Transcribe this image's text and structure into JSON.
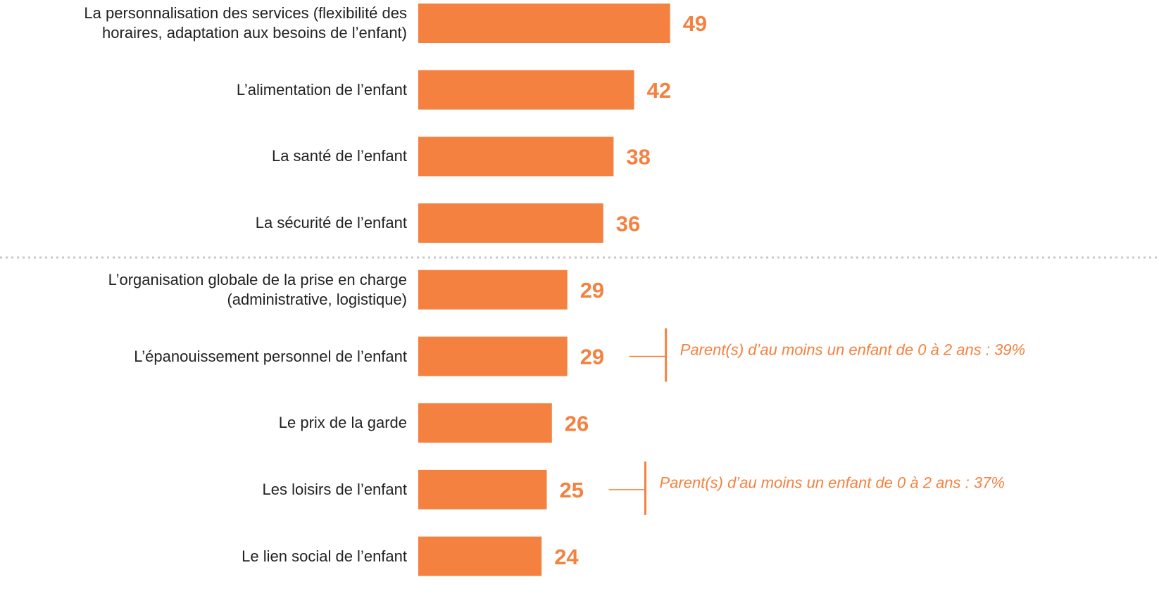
{
  "chart_data": {
    "type": "bar",
    "orientation": "horizontal",
    "categories": [
      "La personnalisation des services (flexibilité des\nhoraires, adaptation aux besoins de l’enfant)",
      "L’alimentation de l’enfant",
      "La santé de l’enfant",
      "La sécurité de l’enfant",
      "L’organisation globale de la prise en charge\n(administrative, logistique)",
      "L’épanouissement personnel de l’enfant",
      "Le prix de la garde",
      "Les loisirs de l’enfant",
      "Le lien social de l’enfant"
    ],
    "values": [
      49,
      42,
      38,
      36,
      29,
      29,
      26,
      25,
      24
    ],
    "color": "#f4813f",
    "annotations": [
      {
        "category": "L’épanouissement personnel de l’enfant",
        "text": "Parent(s) d’au moins un enfant de 0 à 2 ans : 39%"
      },
      {
        "category": "Les loisirs de l’enfant",
        "text": "Parent(s) d’au moins un enfant de 0 à 2 ans : 37%"
      }
    ]
  }
}
